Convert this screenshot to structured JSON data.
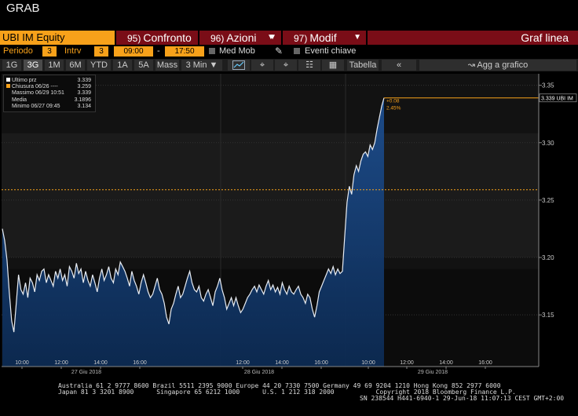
{
  "window_title": "GRAB",
  "command_bar": {
    "security": "UBI IM Equity",
    "buttons": [
      {
        "num": "95)",
        "label": "Confronto"
      },
      {
        "num": "96)",
        "label": "Azioni"
      },
      {
        "num": "97)",
        "label": "Modif"
      }
    ],
    "chart_type": "Graf linea"
  },
  "settings": {
    "periodo_label": "Periodo",
    "periodo_value": "3",
    "intrv_label": "Intrv",
    "intrv_value": "3",
    "start_time": "09:00",
    "dash": "-",
    "end_time": "17:50",
    "med_mob": "Med Mob",
    "eventi": "Eventi chiave"
  },
  "tabs": [
    "1G",
    "3G",
    "1M",
    "6M",
    "YTD",
    "1A",
    "5A",
    "Mass"
  ],
  "selected_tab": "3G",
  "interval_select": "3 Min",
  "toolbar": {
    "tabella": "Tabella",
    "back": "«",
    "agg": "Agg a grafico"
  },
  "legend": [
    {
      "label": "Ultimo prz",
      "value": "3.339",
      "color": "#ffffff"
    },
    {
      "label": "Chiusura 06/26 ----",
      "value": "3.259",
      "color": "#f7a11a"
    },
    {
      "label": "Massimo 06/29 10:51",
      "value": "3.339",
      "color": ""
    },
    {
      "label": "Media",
      "value": "3.1896",
      "color": ""
    },
    {
      "label": "Minimo 06/27 09:45",
      "value": "3.134",
      "color": ""
    }
  ],
  "price_tag": "3.339 UBI IM",
  "change": {
    "abs": "+0.08",
    "pct": "2.45%"
  },
  "chart_data": {
    "type": "area",
    "title": "",
    "ylim": [
      3.105,
      3.36
    ],
    "y_ticks": [
      "3.35",
      "3.30",
      "3.25",
      "3.20",
      "3.15"
    ],
    "x_time_labels": [
      "10:00",
      "12:00",
      "14:00",
      "16:00",
      "10:00",
      "12:00",
      "14:00",
      "16:00",
      "10:00",
      "12:00",
      "14:00",
      "16:00"
    ],
    "date_labels": [
      "27 Giu 2018",
      "28 Giu 2018",
      "29 Giu 2018"
    ],
    "prev_close": 3.259,
    "series": [
      {
        "values": [
          3.225,
          3.215,
          3.198,
          3.17,
          3.145,
          3.135,
          3.16,
          3.185,
          3.172,
          3.168,
          3.178,
          3.165,
          3.182,
          3.178,
          3.17,
          3.185,
          3.18,
          3.188,
          3.19,
          3.178,
          3.185,
          3.18,
          3.175,
          3.188,
          3.182,
          3.19,
          3.18,
          3.185,
          3.175,
          3.192,
          3.188,
          3.182,
          3.195,
          3.186,
          3.19,
          3.178,
          3.188,
          3.18,
          3.175,
          3.185,
          3.178,
          3.17,
          3.182,
          3.19,
          3.18,
          3.185,
          3.192,
          3.182,
          3.178,
          3.19,
          3.185,
          3.196,
          3.192,
          3.188,
          3.182,
          3.175,
          3.188,
          3.18,
          3.175,
          3.168,
          3.178,
          3.185,
          3.178,
          3.17,
          3.165,
          3.168,
          3.175,
          3.182,
          3.172,
          3.168,
          3.16,
          3.148,
          3.142,
          3.155,
          3.16,
          3.168,
          3.175,
          3.165,
          3.168,
          3.175,
          3.182,
          3.188,
          3.178,
          3.172,
          3.17,
          3.175,
          3.165,
          3.162,
          3.168,
          3.172,
          3.165,
          3.158,
          3.17,
          3.175,
          3.182,
          3.172,
          3.165,
          3.155,
          3.16,
          3.165,
          3.158,
          3.165,
          3.158,
          3.152,
          3.155,
          3.16,
          3.165,
          3.168,
          3.172,
          3.175,
          3.17,
          3.176,
          3.172,
          3.168,
          3.175,
          3.18,
          3.172,
          3.176,
          3.17,
          3.174,
          3.168,
          3.178,
          3.172,
          3.168,
          3.175,
          3.17,
          3.168,
          3.172,
          3.175,
          3.168,
          3.165,
          3.16,
          3.168,
          3.165,
          3.155,
          3.148,
          3.158,
          3.17,
          3.175,
          3.18,
          3.185,
          3.19,
          3.186,
          3.192,
          3.185,
          3.19,
          3.186,
          3.188,
          3.218,
          3.248,
          3.262,
          3.255,
          3.272,
          3.28,
          3.275,
          3.284,
          3.29,
          3.292,
          3.288,
          3.298,
          3.294,
          3.3,
          3.312,
          3.322,
          3.332,
          3.339
        ],
        "note": ""
      }
    ]
  },
  "footer": {
    "line1": "Australia 61 2 9777 8600 Brazil 5511 2395 9000 Europe 44 20 7330 7500 Germany 49 69 9204 1210 Hong Kong 852 2977 6000",
    "line2": "Japan 81 3 3201 8900      Singapore 65 6212 1000      U.S. 1 212 318 2000           Copyright 2018 Bloomberg Finance L.P.",
    "line3": "SN 238544 H441-6940-1 29-Jun-18 11:07:13 CEST GMT+2:00"
  }
}
